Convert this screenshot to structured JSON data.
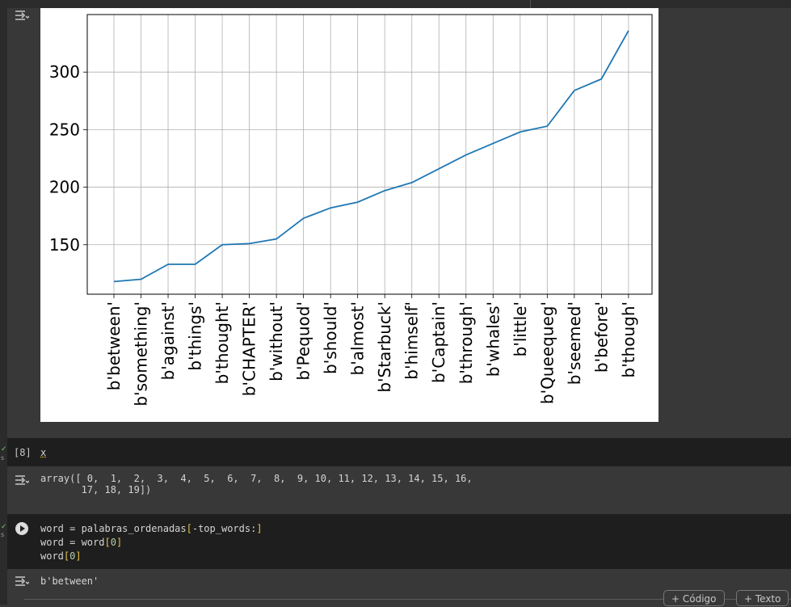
{
  "chart_data": {
    "type": "line",
    "categories": [
      "b'between'",
      "b'something'",
      "b'against'",
      "b'things'",
      "b'thought'",
      "b'CHAPTER'",
      "b'without'",
      "b'Pequod'",
      "b'should'",
      "b'almost'",
      "b'Starbuck'",
      "b'himself'",
      "b'Captain'",
      "b'through'",
      "b'whales'",
      "b'little'",
      "b'Queequeg'",
      "b'seemed'",
      "b'before'",
      "b'though'"
    ],
    "values": [
      118,
      120,
      133,
      133,
      150,
      151,
      155,
      173,
      182,
      187,
      197,
      204,
      216,
      228,
      238,
      248,
      253,
      284,
      294,
      336
    ],
    "ylim": [
      107,
      350
    ],
    "yticks": [
      150,
      200,
      250,
      300
    ],
    "grid": true,
    "line_color": "#1f77b4"
  },
  "cells": {
    "cell8": {
      "exec_count": "[8]",
      "code": "x",
      "output": "array([ 0,  1,  2,  3,  4,  5,  6,  7,  8,  9, 10, 11, 12, 13, 14, 15, 16,\n       17, 18, 19])"
    },
    "cell9": {
      "code_line1_a": "word = palabras_ordenadas",
      "code_line1_b": "[",
      "code_line1_c": "-top_words:",
      "code_line1_d": "]",
      "code_line2_a": "word = word",
      "code_line2_b": "[",
      "code_line2_c": "0",
      "code_line2_d": "]",
      "code_line3_a": "word",
      "code_line3_b": "[",
      "code_line3_c": "0",
      "code_line3_d": "]",
      "output": "b'between'"
    }
  },
  "toolbar": {
    "add_code_label": "+ Código",
    "add_text_label": "+ Texto"
  }
}
